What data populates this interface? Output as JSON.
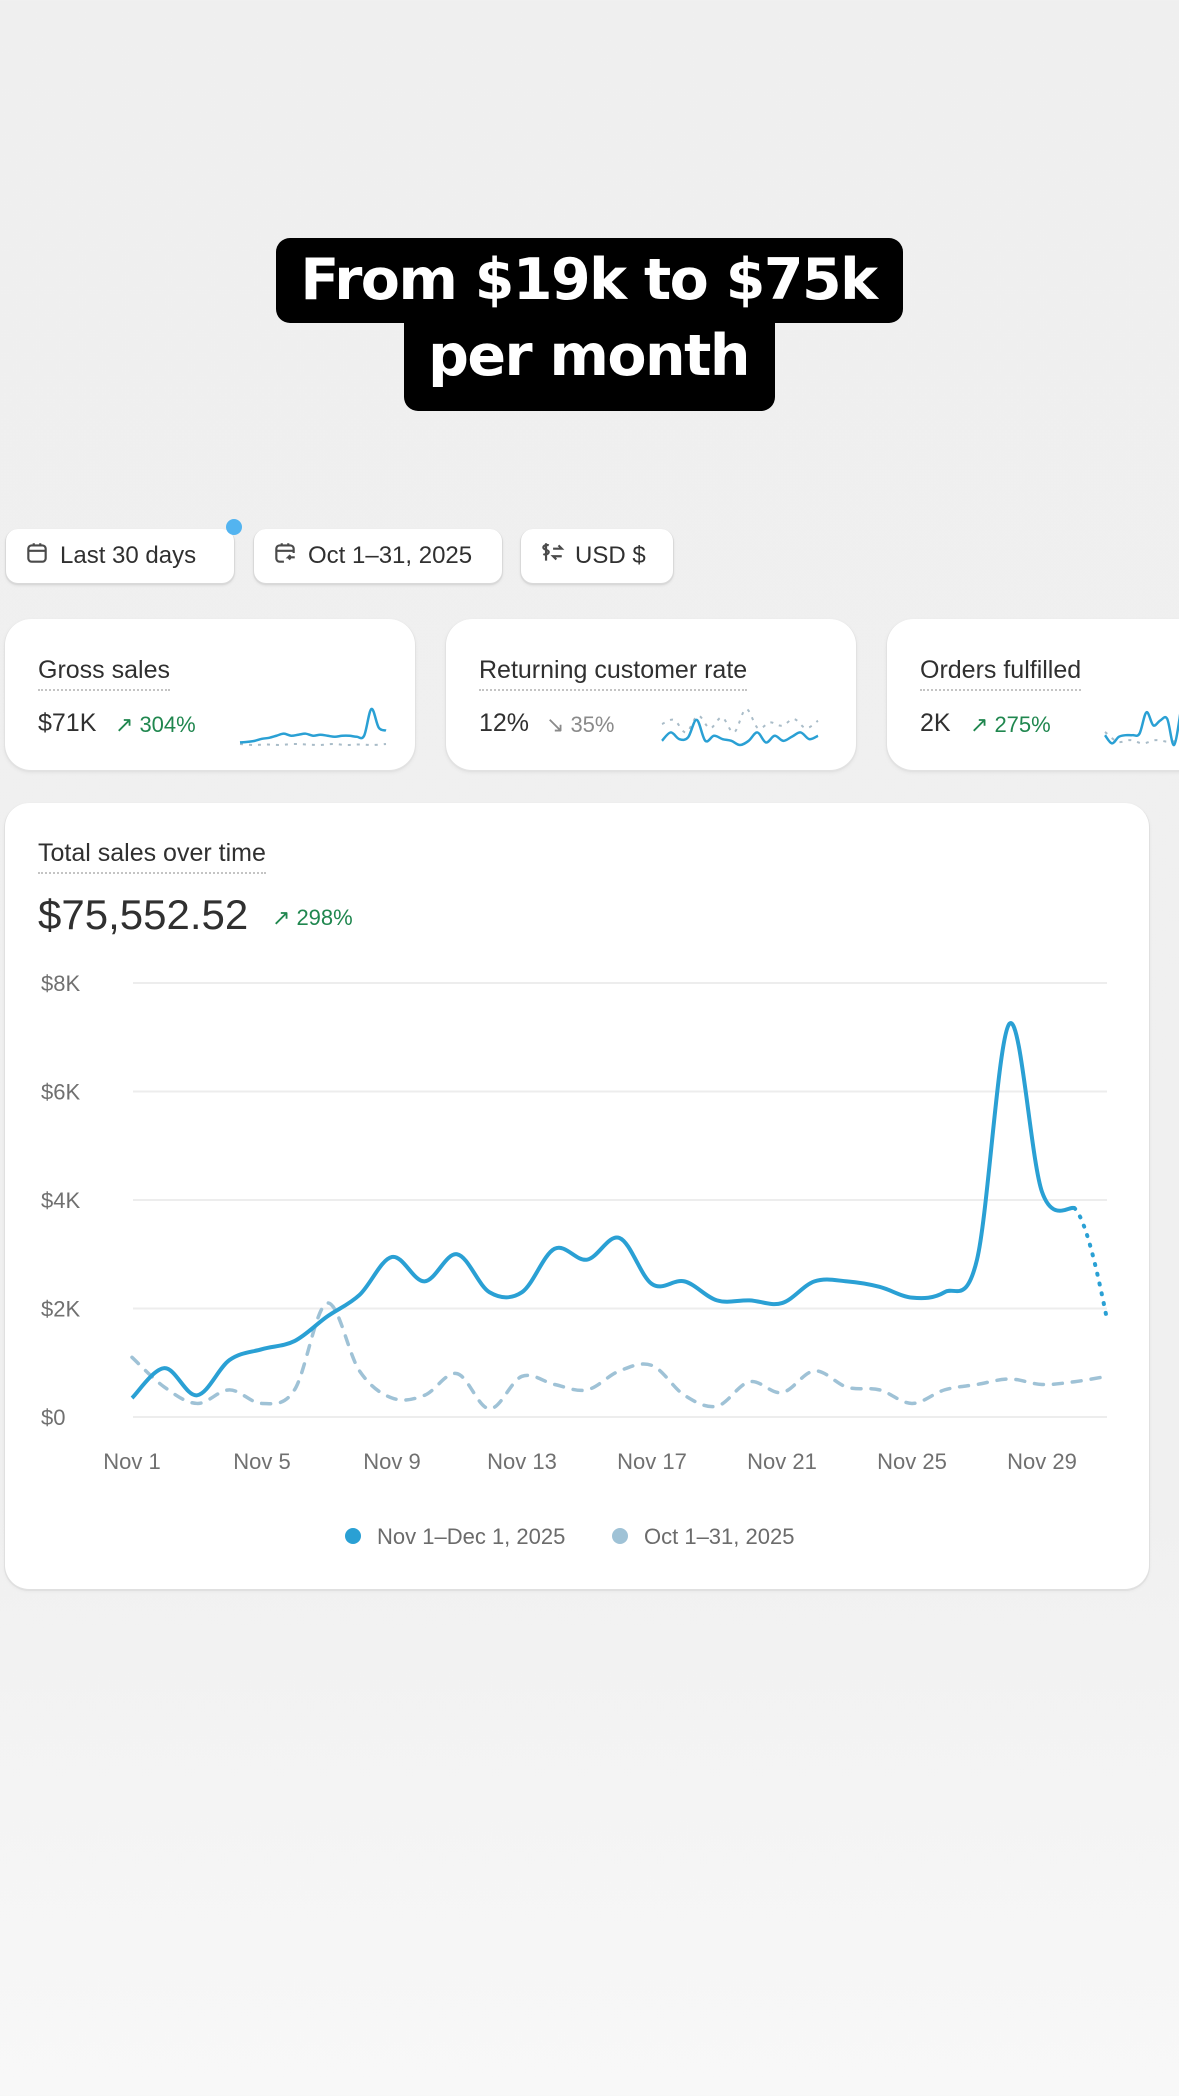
{
  "caption": {
    "line1": "From $19k to $75k",
    "line2": "per month"
  },
  "filters": {
    "range": {
      "label": "Last 30 days",
      "icon": "calendar-icon"
    },
    "compare": {
      "label": "Oct 1–31, 2025",
      "icon": "calendar-compare-icon"
    },
    "currency": {
      "label": "USD $",
      "icon": "currency-exchange-icon"
    }
  },
  "kpis": [
    {
      "title": "Gross sales",
      "value": "$71K",
      "delta": "304%",
      "direction": "up"
    },
    {
      "title": "Returning customer rate",
      "value": "12%",
      "delta": "35%",
      "direction": "down"
    },
    {
      "title": "Orders fulfilled",
      "value": "2K",
      "delta": "275%",
      "direction": "up"
    }
  ],
  "main": {
    "title": "Total sales over time",
    "value": "$75,552.52",
    "delta": "298%",
    "direction": "up"
  },
  "colors": {
    "current": "#2aa0d4",
    "previous": "#9fc2d6",
    "up": "#20874f",
    "down": "#8a8a8a",
    "notification_dot": "#53b4f0"
  },
  "chart_data": {
    "type": "line",
    "title": "Total sales over time",
    "xlabel": "",
    "ylabel": "",
    "ylim": [
      0,
      8000
    ],
    "yticks": [
      0,
      2000,
      4000,
      6000,
      8000
    ],
    "ytick_labels": [
      "$0",
      "$2K",
      "$4K",
      "$6K",
      "$8K"
    ],
    "xtick_labels": [
      "Nov 1",
      "Nov 5",
      "Nov 9",
      "Nov 13",
      "Nov 17",
      "Nov 21",
      "Nov 25",
      "Nov 29"
    ],
    "xtick_indices": [
      0,
      4,
      8,
      12,
      16,
      20,
      24,
      28
    ],
    "grid": true,
    "legend_position": "bottom-center",
    "x": [
      "Nov 1",
      "Nov 2",
      "Nov 3",
      "Nov 4",
      "Nov 5",
      "Nov 6",
      "Nov 7",
      "Nov 8",
      "Nov 9",
      "Nov 10",
      "Nov 11",
      "Nov 12",
      "Nov 13",
      "Nov 14",
      "Nov 15",
      "Nov 16",
      "Nov 17",
      "Nov 18",
      "Nov 19",
      "Nov 20",
      "Nov 21",
      "Nov 22",
      "Nov 23",
      "Nov 24",
      "Nov 25",
      "Nov 26",
      "Nov 27",
      "Nov 28",
      "Nov 29",
      "Nov 30",
      "Dec 1"
    ],
    "series": [
      {
        "name": "Nov 1–Dec 1, 2025",
        "style": "solid",
        "partial_last_point": true,
        "values": [
          350,
          900,
          400,
          1050,
          1250,
          1400,
          1850,
          2250,
          2950,
          2500,
          3000,
          2300,
          2300,
          3100,
          2900,
          3300,
          2450,
          2500,
          2150,
          2150,
          2100,
          2500,
          2500,
          2400,
          2200,
          2300,
          2900,
          7250,
          4150,
          3850,
          1800
        ]
      },
      {
        "name": "Oct 1–31, 2025",
        "style": "dashed",
        "values": [
          1100,
          550,
          250,
          500,
          250,
          500,
          2100,
          850,
          350,
          400,
          800,
          150,
          750,
          600,
          500,
          850,
          950,
          400,
          200,
          650,
          450,
          850,
          550,
          500,
          250,
          500,
          600,
          700,
          600,
          650,
          750
        ]
      }
    ]
  },
  "sparklines": [
    {
      "current": [
        0.35,
        0.4,
        0.5,
        0.7,
        0.8,
        1.0,
        1.2,
        1.0,
        1.1,
        1.2,
        1.0,
        1.1,
        1.0,
        0.9,
        1.0,
        1.0,
        0.9,
        1.0,
        3.6,
        1.8,
        1.5
      ],
      "previous": [
        0.2,
        0.1,
        0.15,
        0.1,
        0.2,
        0.15,
        0.1,
        0.2,
        0.1,
        0.15,
        0.1,
        0.2
      ]
    },
    {
      "current": [
        2,
        3,
        2.2,
        2.4,
        4.5,
        2,
        2.6,
        2.2,
        2,
        1.5,
        2,
        3,
        1.8,
        2.6,
        2,
        2.5,
        3,
        2.2,
        2.6
      ],
      "previous": [
        4,
        4.5,
        3,
        5,
        3.5,
        4.8,
        3,
        5.8,
        3.5,
        4.2,
        3.8,
        4.6,
        3.5,
        4.4
      ]
    },
    {
      "current": [
        1,
        0.5,
        0.9,
        1,
        1,
        1.1,
        2.4,
        1.6,
        1.9,
        2.0,
        0.4,
        2.6
      ],
      "previous": [
        1.2,
        0.6,
        0.7,
        0.5,
        0.7,
        0.6,
        0.7
      ]
    }
  ]
}
